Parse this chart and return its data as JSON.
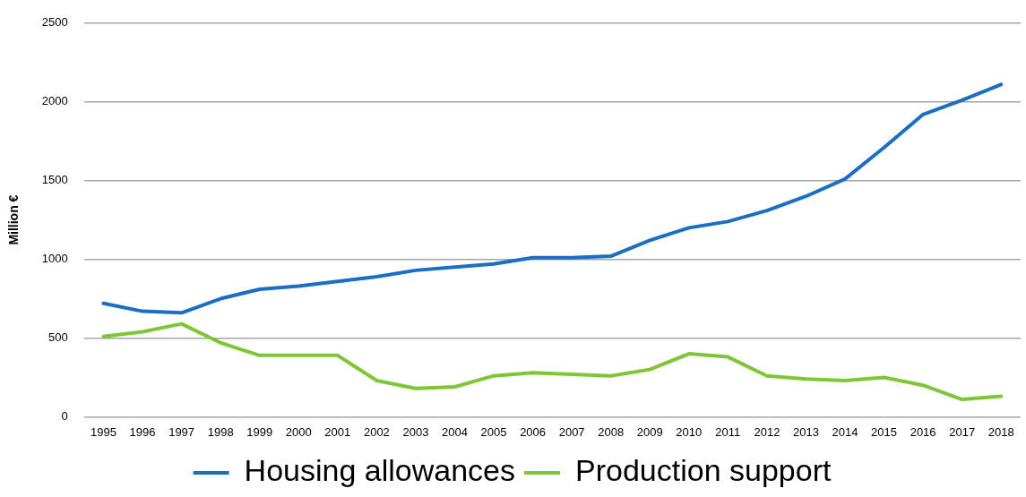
{
  "chart_data": {
    "type": "line",
    "ylabel": "Million €",
    "categories": [
      "1995",
      "1996",
      "1997",
      "1998",
      "1999",
      "2000",
      "2001",
      "2002",
      "2003",
      "2004",
      "2005",
      "2006",
      "2007",
      "2008",
      "2009",
      "2010",
      "2011",
      "2012",
      "2013",
      "2014",
      "2015",
      "2016",
      "2017",
      "2018"
    ],
    "series": [
      {
        "name": "Housing allowances",
        "color": "#1b6ec2",
        "values": [
          720,
          670,
          660,
          750,
          810,
          830,
          860,
          890,
          930,
          950,
          970,
          1010,
          1010,
          1020,
          1120,
          1200,
          1240,
          1310,
          1400,
          1510,
          1710,
          1920,
          2010,
          2110
        ]
      },
      {
        "name": "Production support",
        "color": "#7ec636",
        "values": [
          510,
          540,
          590,
          470,
          390,
          390,
          390,
          230,
          180,
          190,
          260,
          280,
          270,
          260,
          300,
          400,
          380,
          260,
          240,
          230,
          250,
          200,
          110,
          130
        ]
      }
    ],
    "ylim": [
      0,
      2500
    ],
    "yticks": [
      0,
      500,
      1000,
      1500,
      2000,
      2500
    ],
    "grid": "y",
    "legend": "bottom",
    "marker": "none",
    "line_style": "solid"
  }
}
